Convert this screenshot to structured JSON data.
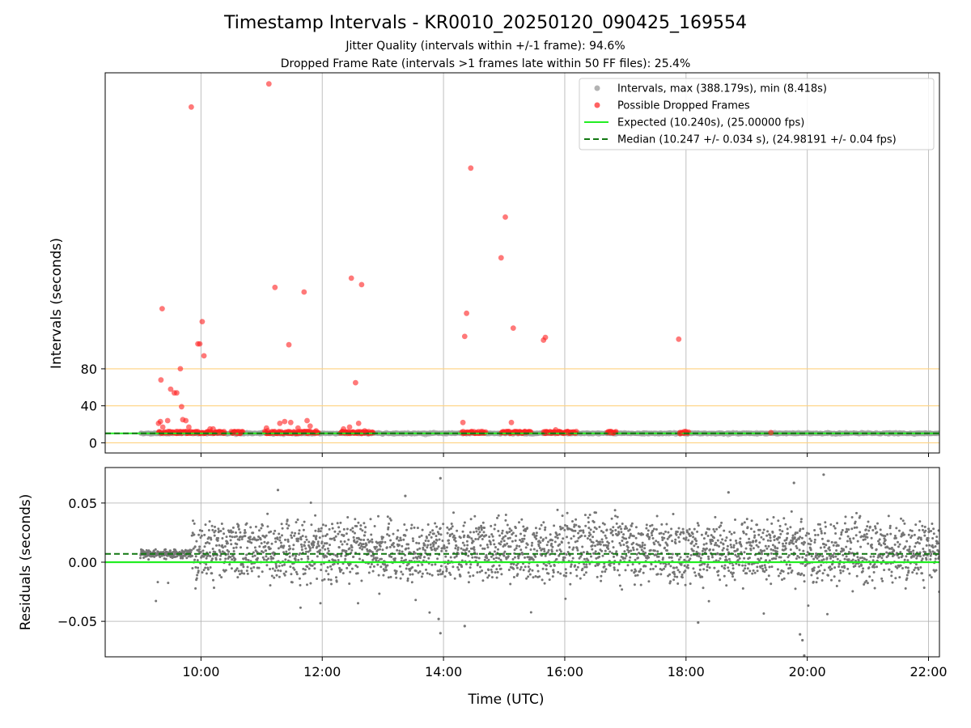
{
  "chart_data": [
    {
      "type": "scatter",
      "title": "Timestamp Intervals - KR0010_20250120_090425_169554",
      "subtitle_lines": [
        "Jitter Quality (intervals within +/-1 frame): 94.6%",
        "Dropped Frame Rate (intervals >1 frames late within 50 FF files): 25.4%"
      ],
      "xlabel": "",
      "ylabel": "Intervals (seconds)",
      "x_unit": "hours (UTC)",
      "xlim": [
        8.42,
        22.18
      ],
      "ylim": [
        -11,
        400
      ],
      "yticks": [
        0,
        40,
        80
      ],
      "x_gridlines": [
        10,
        12,
        14,
        16,
        18,
        20,
        22
      ],
      "reference_lines": [
        {
          "y": 0,
          "color": "#ffd27f"
        },
        {
          "y": 40,
          "color": "#ffd27f"
        },
        {
          "y": 80,
          "color": "#ffd27f"
        }
      ],
      "legend_position": "top-right",
      "series": [
        {
          "name": "Intervals, max (388.179s), min (8.418s)",
          "kind": "scatter",
          "color": "#a0a0a0",
          "note": "dense band of intervals near 10.24 s across 09:00–22:10 UTC",
          "x_range": [
            9.0,
            22.18
          ],
          "y_value": 10.24
        },
        {
          "name": "Possible Dropped Frames",
          "kind": "scatter",
          "color": "#ff2020",
          "points": [
            [
              9.3,
              21
            ],
            [
              9.33,
              23
            ],
            [
              9.37,
              17
            ],
            [
              9.36,
              145
            ],
            [
              9.34,
              68
            ],
            [
              9.45,
              24
            ],
            [
              9.5,
              58
            ],
            [
              9.56,
              54
            ],
            [
              9.6,
              54
            ],
            [
              9.66,
              80
            ],
            [
              9.68,
              39
            ],
            [
              9.7,
              25
            ],
            [
              9.75,
              24
            ],
            [
              9.8,
              17
            ],
            [
              9.84,
              363
            ],
            [
              9.95,
              107
            ],
            [
              9.98,
              107
            ],
            [
              10.02,
              131
            ],
            [
              10.05,
              94
            ],
            [
              10.15,
              15
            ],
            [
              10.2,
              15
            ],
            [
              10.3,
              12
            ],
            [
              10.55,
              12
            ],
            [
              10.65,
              11
            ],
            [
              11.08,
              16
            ],
            [
              11.1,
              13
            ],
            [
              11.12,
              388
            ],
            [
              11.22,
              168
            ],
            [
              11.3,
              21
            ],
            [
              11.38,
              23
            ],
            [
              11.45,
              106
            ],
            [
              11.48,
              22
            ],
            [
              11.6,
              16
            ],
            [
              11.7,
              163
            ],
            [
              11.75,
              24
            ],
            [
              11.8,
              18
            ],
            [
              11.9,
              13
            ],
            [
              12.35,
              15
            ],
            [
              12.45,
              17
            ],
            [
              12.48,
              178
            ],
            [
              12.55,
              65
            ],
            [
              12.6,
              21
            ],
            [
              12.65,
              171
            ],
            [
              12.7,
              13
            ],
            [
              14.32,
              22
            ],
            [
              14.35,
              115
            ],
            [
              14.38,
              140
            ],
            [
              14.45,
              297
            ],
            [
              14.95,
              200
            ],
            [
              15.02,
              244
            ],
            [
              15.12,
              22
            ],
            [
              15.15,
              124
            ],
            [
              15.65,
              111
            ],
            [
              15.68,
              114
            ],
            [
              15.7,
              12
            ],
            [
              15.85,
              14
            ],
            [
              16.05,
              12
            ],
            [
              16.75,
              11
            ],
            [
              16.8,
              11
            ],
            [
              17.88,
              112
            ],
            [
              17.9,
              10
            ],
            [
              19.4,
              11
            ]
          ],
          "dense_clusters_x_ranges": [
            [
              9.3,
              10.4
            ],
            [
              10.5,
              10.7
            ],
            [
              11.05,
              11.95
            ],
            [
              12.3,
              12.85
            ],
            [
              14.3,
              14.7
            ],
            [
              14.95,
              15.45
            ],
            [
              15.65,
              16.2
            ],
            [
              16.7,
              16.85
            ],
            [
              17.9,
              18.05
            ]
          ],
          "cluster_y_value": 10
        },
        {
          "name": "Expected (10.240s), (25.00000 fps)",
          "kind": "line",
          "color": "#22ee22",
          "y": 10.24
        },
        {
          "name": "Median (10.247 +/- 0.034 s), (24.98191 +/- 0.04 fps)",
          "kind": "dashed-line",
          "color": "#117711",
          "y": 10.247
        }
      ]
    },
    {
      "type": "scatter",
      "title": "",
      "xlabel": "Time (UTC)",
      "ylabel": "Residuals (seconds)",
      "x_unit": "hours (UTC)",
      "xlim": [
        8.42,
        22.18
      ],
      "ylim": [
        -0.08,
        0.08
      ],
      "yticks": [
        0.05,
        0.0,
        -0.05
      ],
      "ytick_labels": [
        "0.05",
        "0.00",
        "−0.05"
      ],
      "xticks": [
        10,
        12,
        14,
        16,
        18,
        20,
        22
      ],
      "xtick_labels": [
        "10:00",
        "12:00",
        "14:00",
        "16:00",
        "18:00",
        "20:00",
        "22:00"
      ],
      "grid": true,
      "series": [
        {
          "name": "",
          "kind": "scatter",
          "color": "#757575",
          "note": "about 3000 residual points; tight cluster near +0.007 from 09:00–09:50, then bimodal spread around 0.000 and +0.020 with scatter to about ±0.05",
          "x_range": [
            9.0,
            22.18
          ],
          "bands": [
            0.0,
            0.02
          ],
          "spread": 0.05,
          "outliers": [
            [
              11.27,
              0.061
            ],
            [
              13.37,
              0.056
            ],
            [
              13.95,
              0.071
            ],
            [
              13.92,
              -0.048
            ],
            [
              13.95,
              -0.06
            ],
            [
              14.35,
              -0.054
            ],
            [
              18.2,
              -0.051
            ],
            [
              18.7,
              0.059
            ],
            [
              19.78,
              0.067
            ],
            [
              19.95,
              -0.079
            ],
            [
              19.92,
              -0.066
            ],
            [
              19.88,
              -0.061
            ],
            [
              20.27,
              0.074
            ],
            [
              22.18,
              -0.025
            ]
          ]
        },
        {
          "name": "",
          "kind": "line",
          "color": "#22ee22",
          "y": 0.0
        },
        {
          "name": "",
          "kind": "dashed-line",
          "color": "#117711",
          "y": 0.007
        }
      ]
    }
  ]
}
